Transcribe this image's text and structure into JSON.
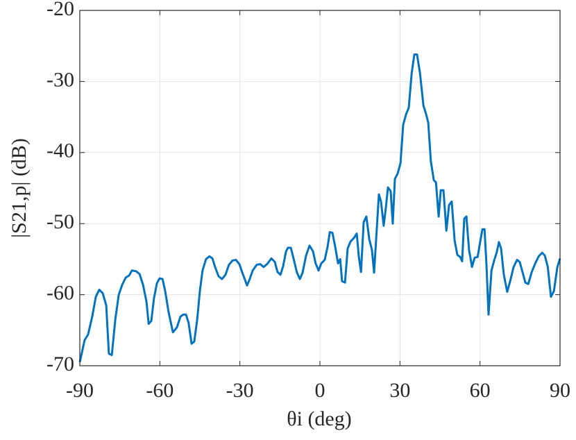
{
  "chart_data": {
    "type": "line",
    "xlabel": "θi (deg)",
    "ylabel": "|S21,p| (dB)",
    "x": [
      -90,
      -88.2,
      -86.9,
      -85.3,
      -84,
      -82.7,
      -81.4,
      -80.1,
      -79.1,
      -78,
      -76.7,
      -75.4,
      -74.1,
      -72.8,
      -71.5,
      -70.5,
      -68.9,
      -67.6,
      -66.3,
      -65,
      -64.2,
      -63.2,
      -62.2,
      -61.1,
      -60.1,
      -59,
      -58,
      -56.7,
      -55.1,
      -53.6,
      -52.3,
      -51.2,
      -50.2,
      -49.2,
      -48.1,
      -47.1,
      -46,
      -45,
      -44,
      -42.7,
      -41.4,
      -40.3,
      -39.3,
      -38,
      -36.7,
      -35.4,
      -34.1,
      -32.8,
      -31.5,
      -30.2,
      -28.9,
      -27.3,
      -26.3,
      -25.2,
      -23.7,
      -22.4,
      -21.1,
      -19.8,
      -18.2,
      -16.9,
      -15.9,
      -14.8,
      -13.8,
      -12.7,
      -12,
      -10.9,
      -9.9,
      -8.6,
      -7.5,
      -6.5,
      -5.2,
      -3.9,
      -2.6,
      -1.6,
      -0.5,
      0.5,
      1.8,
      2.9,
      3.7,
      4.7,
      5.7,
      6.8,
      7.6,
      8.3,
      9.4,
      10.4,
      11.5,
      12.8,
      13.8,
      14.6,
      15.4,
      16.4,
      17.4,
      18.5,
      19.5,
      20.3,
      21.3,
      22.1,
      22.9,
      23.9,
      24.7,
      25.5,
      26.5,
      27.3,
      28.1,
      29.1,
      30.2,
      31.2,
      32.3,
      33.3,
      34.4,
      35.4,
      36.4,
      37.5,
      38.8,
      39.8,
      40.6,
      41.6,
      42.7,
      43.5,
      44.5,
      45.3,
      46.3,
      47.4,
      48.4,
      49.4,
      50.5,
      51.5,
      52.6,
      53.3,
      54.1,
      54.9,
      55.9,
      57,
      58,
      59.1,
      60.1,
      60.9,
      61.7,
      62.4,
      63.2,
      64.3,
      65.3,
      66.3,
      67.1,
      67.9,
      68.9,
      70.2,
      71.3,
      72.6,
      73.9,
      74.9,
      76,
      77,
      78.1,
      79.4,
      80.7,
      82,
      83.3,
      84.3,
      85.4,
      86.6,
      87.7,
      89,
      90
    ],
    "series": [
      {
        "color": "#0072bd",
        "values": [
          -69.5,
          -66.4,
          -65.6,
          -63,
          -60.3,
          -59.3,
          -59.8,
          -61.5,
          -68.3,
          -68.5,
          -63.5,
          -60,
          -58.6,
          -57.6,
          -57.3,
          -56.6,
          -56.7,
          -57.1,
          -58.6,
          -61,
          -64.1,
          -63.7,
          -60.5,
          -58.4,
          -57.7,
          -57.8,
          -59.5,
          -62.5,
          -65.3,
          -64.6,
          -63.1,
          -62.8,
          -62.8,
          -64,
          -66.9,
          -66.6,
          -63.5,
          -59.5,
          -56.6,
          -55,
          -54.6,
          -54.9,
          -56.1,
          -57.4,
          -57.8,
          -57.2,
          -55.8,
          -55.2,
          -55.1,
          -55.7,
          -57.1,
          -58.7,
          -57.8,
          -56.6,
          -55.8,
          -55.7,
          -56.1,
          -55.7,
          -54.9,
          -55.4,
          -56.8,
          -57.2,
          -56,
          -53.9,
          -53.4,
          -53.4,
          -54.9,
          -56.9,
          -57.8,
          -56.9,
          -54.5,
          -53.1,
          -53.9,
          -55.6,
          -56.6,
          -55.6,
          -55.1,
          -53.2,
          -51.2,
          -51.3,
          -53.2,
          -55.6,
          -55,
          -58.1,
          -58.3,
          -53.5,
          -52.5,
          -52,
          -51.4,
          -54.7,
          -56.8,
          -49.8,
          -49,
          -52.2,
          -53.7,
          -56.9,
          -50.8,
          -45.9,
          -46.9,
          -50.3,
          -47.8,
          -44.9,
          -45.4,
          -50,
          -43.7,
          -43,
          -41.5,
          -36.1,
          -34.6,
          -33.7,
          -28.8,
          -26.2,
          -26.2,
          -28.8,
          -33.4,
          -34.6,
          -35.8,
          -41.3,
          -43.9,
          -44.2,
          -49,
          -45.3,
          -45.3,
          -51,
          -47.4,
          -46.9,
          -52.4,
          -54.4,
          -54.7,
          -55.3,
          -49.3,
          -49,
          -53.7,
          -56.1,
          -54.8,
          -54.7,
          -52.5,
          -50.8,
          -50.8,
          -55.6,
          -62.8,
          -56.6,
          -55.2,
          -54,
          -52.6,
          -53.5,
          -57.1,
          -59.6,
          -58.1,
          -56.1,
          -55.1,
          -55.4,
          -56.9,
          -58.3,
          -58.5,
          -56.8,
          -55.6,
          -54.6,
          -54.1,
          -54.5,
          -56.1,
          -60.3,
          -59.5,
          -56.1,
          -54.9
        ]
      }
    ],
    "xlim": [
      -90,
      90
    ],
    "xticks": [
      -90,
      -60,
      -30,
      0,
      30,
      60,
      90
    ],
    "ylim": [
      -70,
      -20
    ],
    "yticks": [
      -70,
      -60,
      -50,
      -40,
      -30,
      -20
    ],
    "grid": true
  }
}
